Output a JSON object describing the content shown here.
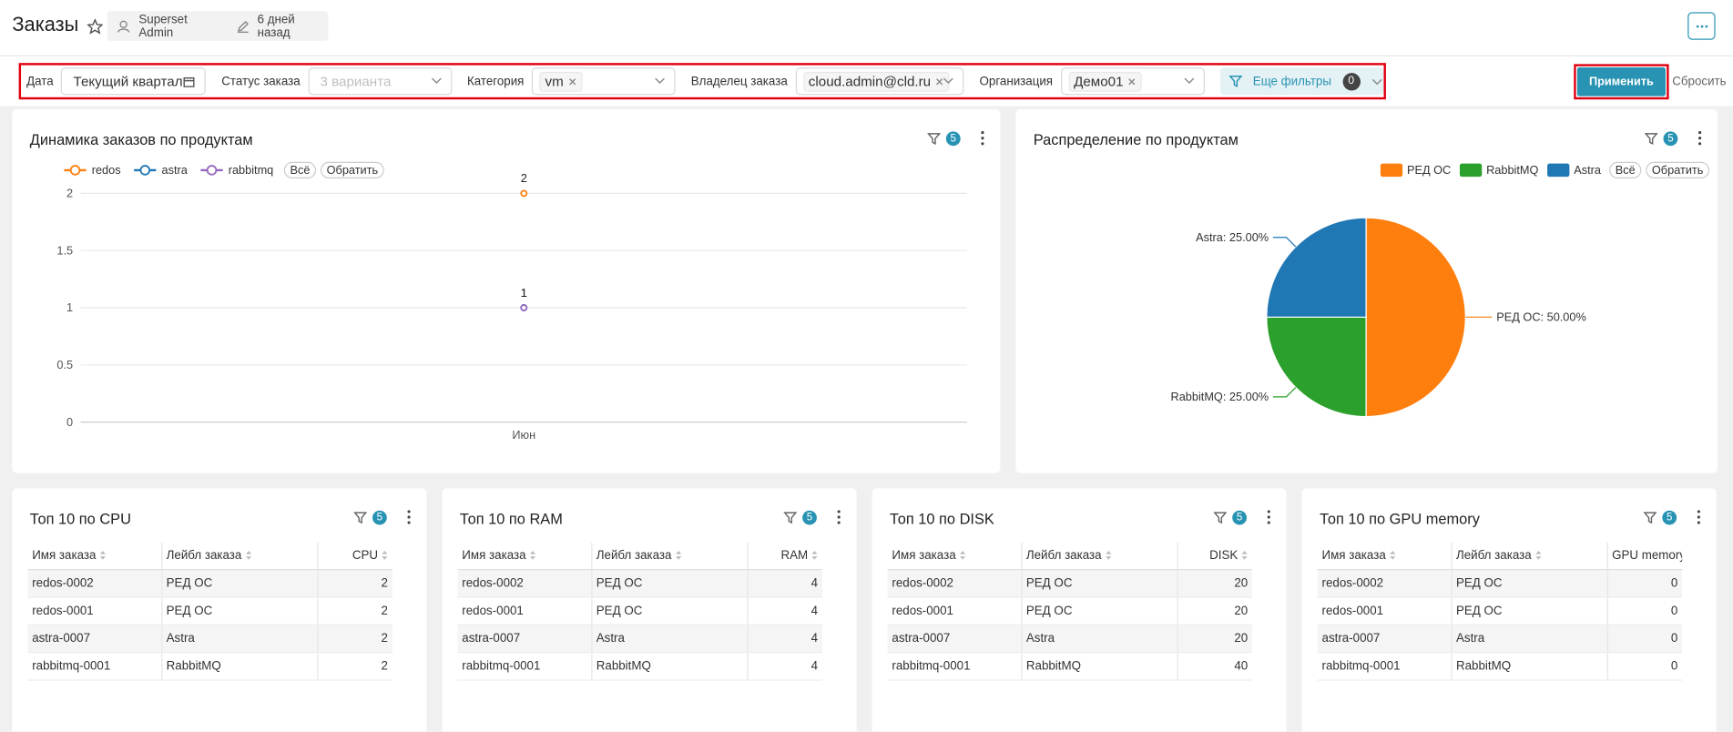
{
  "header": {
    "title": "Заказы",
    "owner": "Superset Admin",
    "modified": "6 дней назад"
  },
  "filter_bar": {
    "filters": [
      {
        "label": "Дата",
        "value": "Текущий квартал"
      },
      {
        "label": "Статус заказа",
        "placeholder": "3 варианта"
      },
      {
        "label": "Категория",
        "tags": [
          "vm"
        ]
      },
      {
        "label": "Владелец заказа",
        "tags": [
          "cloud.admin@cld.ru"
        ]
      },
      {
        "label": "Организация",
        "tags": [
          "Демо01"
        ]
      }
    ],
    "more_filters": "Еще фильтры",
    "more_filters_count": 0,
    "apply": "Применить",
    "reset": "Сбросить"
  },
  "chart_data": [
    {
      "type": "line",
      "title": "Динамика заказов по продуктам",
      "filter_count": 5,
      "categories": [
        "Июн"
      ],
      "series": [
        {
          "name": "redos",
          "color": "#ff7f0e",
          "values": [
            2
          ]
        },
        {
          "name": "astra",
          "color": "#1f77b4",
          "values": [
            1
          ]
        },
        {
          "name": "rabbitmq",
          "color": "#9467bd",
          "values": [
            1
          ]
        }
      ],
      "ylim": [
        0,
        2
      ],
      "yticks": [
        0,
        0.5,
        1,
        1.5,
        2
      ],
      "grid": true,
      "legend_buttons": [
        "Всё",
        "Обратить"
      ]
    },
    {
      "type": "pie",
      "title": "Распределение по продуктам",
      "filter_count": 5,
      "categories": [
        "РЕД ОС",
        "RabbitMQ",
        "Astra"
      ],
      "values": [
        50,
        25,
        25
      ],
      "value_labels": [
        "РЕД ОС: 50.00%",
        "RabbitMQ: 25.00%",
        "Astra: 25.00%"
      ],
      "colors": [
        "#ff7f0e",
        "#2ca02c",
        "#1f77b4"
      ],
      "legend_buttons": [
        "Всё",
        "Обратить"
      ]
    }
  ],
  "tables": [
    {
      "title": "Топ 10 по CPU",
      "filter_count": 5,
      "columns": [
        "Имя заказа",
        "Лейбл заказа",
        "CPU"
      ],
      "rows": [
        [
          "redos-0002",
          "РЕД ОС",
          2
        ],
        [
          "redos-0001",
          "РЕД ОС",
          2
        ],
        [
          "astra-0007",
          "Astra",
          2
        ],
        [
          "rabbitmq-0001",
          "RabbitMQ",
          2
        ]
      ]
    },
    {
      "title": "Топ 10 по RAM",
      "filter_count": 5,
      "columns": [
        "Имя заказа",
        "Лейбл заказа",
        "RAM"
      ],
      "rows": [
        [
          "redos-0002",
          "РЕД ОС",
          4
        ],
        [
          "redos-0001",
          "РЕД ОС",
          4
        ],
        [
          "astra-0007",
          "Astra",
          4
        ],
        [
          "rabbitmq-0001",
          "RabbitMQ",
          4
        ]
      ]
    },
    {
      "title": "Топ 10 по DISK",
      "filter_count": 5,
      "columns": [
        "Имя заказа",
        "Лейбл заказа",
        "DISK"
      ],
      "rows": [
        [
          "redos-0002",
          "РЕД ОС",
          20
        ],
        [
          "redos-0001",
          "РЕД ОС",
          20
        ],
        [
          "astra-0007",
          "Astra",
          20
        ],
        [
          "rabbitmq-0001",
          "RabbitMQ",
          40
        ]
      ]
    },
    {
      "title": "Топ 10 по GPU memory",
      "filter_count": 5,
      "columns": [
        "Имя заказа",
        "Лейбл заказа",
        "GPU memory"
      ],
      "rows": [
        [
          "redos-0002",
          "РЕД ОС",
          0
        ],
        [
          "redos-0001",
          "РЕД ОС",
          0
        ],
        [
          "astra-0007",
          "Astra",
          0
        ],
        [
          "rabbitmq-0001",
          "RabbitMQ",
          0
        ]
      ]
    }
  ]
}
